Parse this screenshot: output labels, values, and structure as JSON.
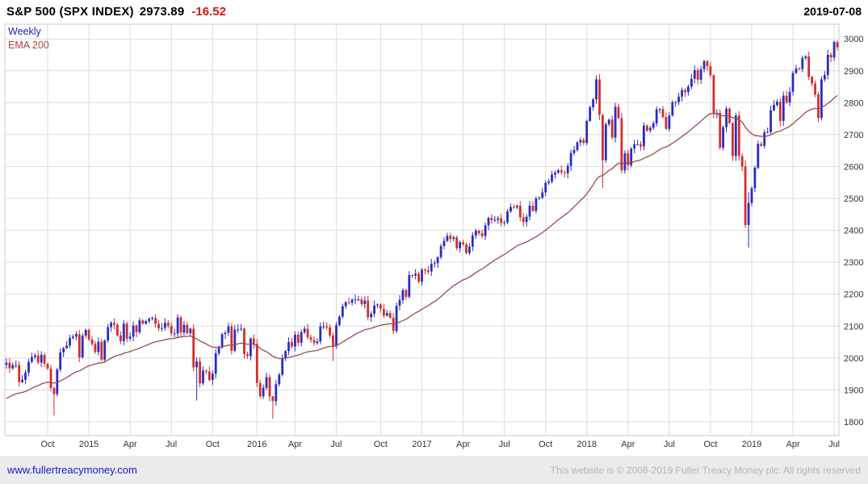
{
  "header": {
    "title": "S&P 500 (SPX INDEX)",
    "last_price": "2973.89",
    "change": "-16.52",
    "date": "2019-07-08"
  },
  "legend": {
    "timeframe": "Weekly",
    "overlay": "EMA 200"
  },
  "footer": {
    "link": "www.fullertreacymoney.com",
    "copyright": "This website is © 2008-2019 Fuller Treacy Money plc. All rights reserved"
  },
  "colors": {
    "up": "#2b2bc0",
    "down": "#d22d2d",
    "ema": "#9a4a4a",
    "grid": "#dcdcdc",
    "border": "#c8c8c8",
    "axis_text": "#333333",
    "change_negative": "#dd1111",
    "legend_timeframe": "#2222bb",
    "legend_ema": "#b54040",
    "link": "#1717cf",
    "copyright_text": "#b5b5b5",
    "footer_bg": "#ebebeb"
  },
  "chart_data": {
    "type": "candlestick",
    "title": "S&P 500 (SPX INDEX) weekly candles with 200-day EMA overlay",
    "symbol": "S&P 500 (SPX INDEX)",
    "timeframe": "weekly",
    "overlay": "EMA 200",
    "start": "2014-07",
    "end": "2019-07-08",
    "ylim": [
      1757,
      3046
    ],
    "y_ticks": [
      1800,
      1900,
      2000,
      2100,
      2200,
      2300,
      2400,
      2500,
      2600,
      2700,
      2800,
      2900,
      3000
    ],
    "x_ticks": [
      {
        "week": 13,
        "label": "Oct"
      },
      {
        "week": 26,
        "label": "2015"
      },
      {
        "week": 39,
        "label": "Apr"
      },
      {
        "week": 52,
        "label": "Jul"
      },
      {
        "week": 65,
        "label": "Oct"
      },
      {
        "week": 79,
        "label": "2016"
      },
      {
        "week": 91,
        "label": "Apr"
      },
      {
        "week": 104,
        "label": "Jul"
      },
      {
        "week": 118,
        "label": "Oct"
      },
      {
        "week": 131,
        "label": "2017"
      },
      {
        "week": 144,
        "label": "Apr"
      },
      {
        "week": 157,
        "label": "Jul"
      },
      {
        "week": 170,
        "label": "Oct"
      },
      {
        "week": 183,
        "label": "2018"
      },
      {
        "week": 196,
        "label": "Apr"
      },
      {
        "week": 209,
        "label": "Jul"
      },
      {
        "week": 222,
        "label": "Oct"
      },
      {
        "week": 235,
        "label": "2019"
      },
      {
        "week": 248,
        "label": "Apr"
      },
      {
        "week": 261,
        "label": "Jul"
      }
    ],
    "weekly_closes": [
      1985,
      1968,
      1978,
      1978,
      1925,
      1932,
      1955,
      1988,
      2003,
      2008,
      1986,
      2010,
      1982,
      1967,
      1906,
      1887,
      1964,
      2018,
      2031,
      2039,
      2063,
      2067,
      2075,
      2002,
      2070,
      2088,
      2058,
      2044,
      2019,
      2051,
      1995,
      2055,
      2097,
      2110,
      2104,
      2071,
      2053,
      2108,
      2061,
      2067,
      2102,
      2081,
      2118,
      2108,
      2116,
      2123,
      2126,
      2107,
      2093,
      2094,
      2110,
      2101,
      2077,
      2077,
      2127,
      2080,
      2104,
      2078,
      2092,
      1971,
      1989,
      1921,
      1961,
      1958,
      1931,
      1951,
      2015,
      2033,
      2075,
      2079,
      2099,
      2023,
      2089,
      2090,
      2092,
      2012,
      2006,
      2061,
      2044,
      1922,
      1880,
      1907,
      1940,
      1880,
      1865,
      1918,
      1948,
      2000,
      2022,
      2050,
      2036,
      2073,
      2048,
      2081,
      2092,
      2065,
      2057,
      2047,
      2052,
      2099,
      2099,
      2096,
      2071,
      2037,
      2103,
      2130,
      2162,
      2175,
      2174,
      2183,
      2184,
      2184,
      2169,
      2180,
      2128,
      2139,
      2165,
      2168,
      2154,
      2133,
      2141,
      2126,
      2085,
      2164,
      2182,
      2213,
      2192,
      2260,
      2258,
      2264,
      2239,
      2277,
      2275,
      2271,
      2295,
      2297,
      2316,
      2351,
      2367,
      2383,
      2373,
      2378,
      2344,
      2363,
      2356,
      2329,
      2349,
      2384,
      2399,
      2391,
      2382,
      2416,
      2439,
      2432,
      2433,
      2438,
      2423,
      2425,
      2459,
      2473,
      2472,
      2477,
      2441,
      2426,
      2443,
      2477,
      2461,
      2500,
      2502,
      2519,
      2549,
      2553,
      2575,
      2581,
      2588,
      2582,
      2579,
      2602,
      2642,
      2652,
      2676,
      2683,
      2674,
      2743,
      2786,
      2810,
      2873,
      2762,
      2620,
      2732,
      2747,
      2691,
      2787,
      2752,
      2588,
      2641,
      2604,
      2656,
      2670,
      2670,
      2663,
      2728,
      2713,
      2721,
      2735,
      2779,
      2780,
      2755,
      2718,
      2760,
      2801,
      2802,
      2819,
      2840,
      2833,
      2850,
      2875,
      2902,
      2872,
      2905,
      2930,
      2914,
      2886,
      2767,
      2768,
      2659,
      2723,
      2781,
      2736,
      2633,
      2760,
      2633,
      2600,
      2417,
      2486,
      2532,
      2596,
      2671,
      2665,
      2707,
      2708,
      2776,
      2793,
      2803,
      2743,
      2822,
      2801,
      2834,
      2893,
      2907,
      2905,
      2940,
      2945,
      2881,
      2860,
      2826,
      2752,
      2873,
      2887,
      2950,
      2942,
      2990,
      2974
    ],
    "wick_overrides": {
      "15": [
        1820,
        1912
      ],
      "60": [
        1867,
        2002
      ],
      "84": [
        1810,
        1881
      ],
      "103": [
        1991,
        2080
      ],
      "188": [
        2533,
        2765
      ],
      "233": [
        2408,
        2620
      ],
      "234": [
        2346,
        2520
      ],
      "262": [
        2963,
        2995
      ]
    },
    "ema_seed": 1868,
    "ema_alpha": 0.05,
    "grid": true,
    "legend_position": "top-left",
    "y_axis_position": "right"
  }
}
